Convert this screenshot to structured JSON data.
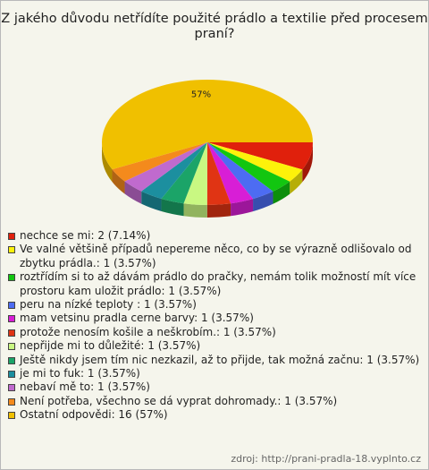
{
  "chart_data": {
    "type": "pie",
    "title": "Z jakého důvodu netřídíte použité prádlo a textilie před procesem praní?",
    "slice_label": "57%",
    "series": [
      {
        "legend": "nechce se mi: 2 (7.14%)",
        "value": 7.14,
        "color": "#e0200c"
      },
      {
        "legend": "Ve valné většině případů nepereme něco, co by se výrazně odlišovalo od zbytku prádla.: 1 (3.57%)",
        "value": 3.57,
        "color": "#fdf20a"
      },
      {
        "legend": "roztřídím si to až dávám prádlo do pračky, nemám tolik možností mít více prostoru kam uložit prádlo: 1 (3.57%)",
        "value": 3.57,
        "color": "#12c610"
      },
      {
        "legend": "peru na nízké teploty : 1 (3.57%)",
        "value": 3.57,
        "color": "#4d6cf2"
      },
      {
        "legend": "mam vetsinu pradla cerne barvy: 1 (3.57%)",
        "value": 3.57,
        "color": "#d81ed6"
      },
      {
        "legend": "protože nenosím košile a neškrobím.: 1 (3.57%)",
        "value": 3.57,
        "color": "#e03414"
      },
      {
        "legend": "nepřijde mi to důležité: 1 (3.57%)",
        "value": 3.57,
        "color": "#c9f882"
      },
      {
        "legend": "Ještě nikdy jsem tím nic nezkazil, až to přijde, tak možná začnu: 1 (3.57%)",
        "value": 3.57,
        "color": "#1ba468"
      },
      {
        "legend": "je mi to fuk: 1 (3.57%)",
        "value": 3.57,
        "color": "#1c8f9f"
      },
      {
        "legend": "nebaví mě to: 1 (3.57%)",
        "value": 3.57,
        "color": "#c06ace"
      },
      {
        "legend": "Není potřeba, všechno se dá vyprat dohromady.: 1 (3.57%)",
        "value": 3.57,
        "color": "#f48a1c"
      },
      {
        "legend": "Ostatní odpovědi: 16 (57%)",
        "value": 57,
        "color": "#f0c000"
      }
    ]
  },
  "source": "zdroj: http://prani-pradla-18.vyplnto.cz"
}
